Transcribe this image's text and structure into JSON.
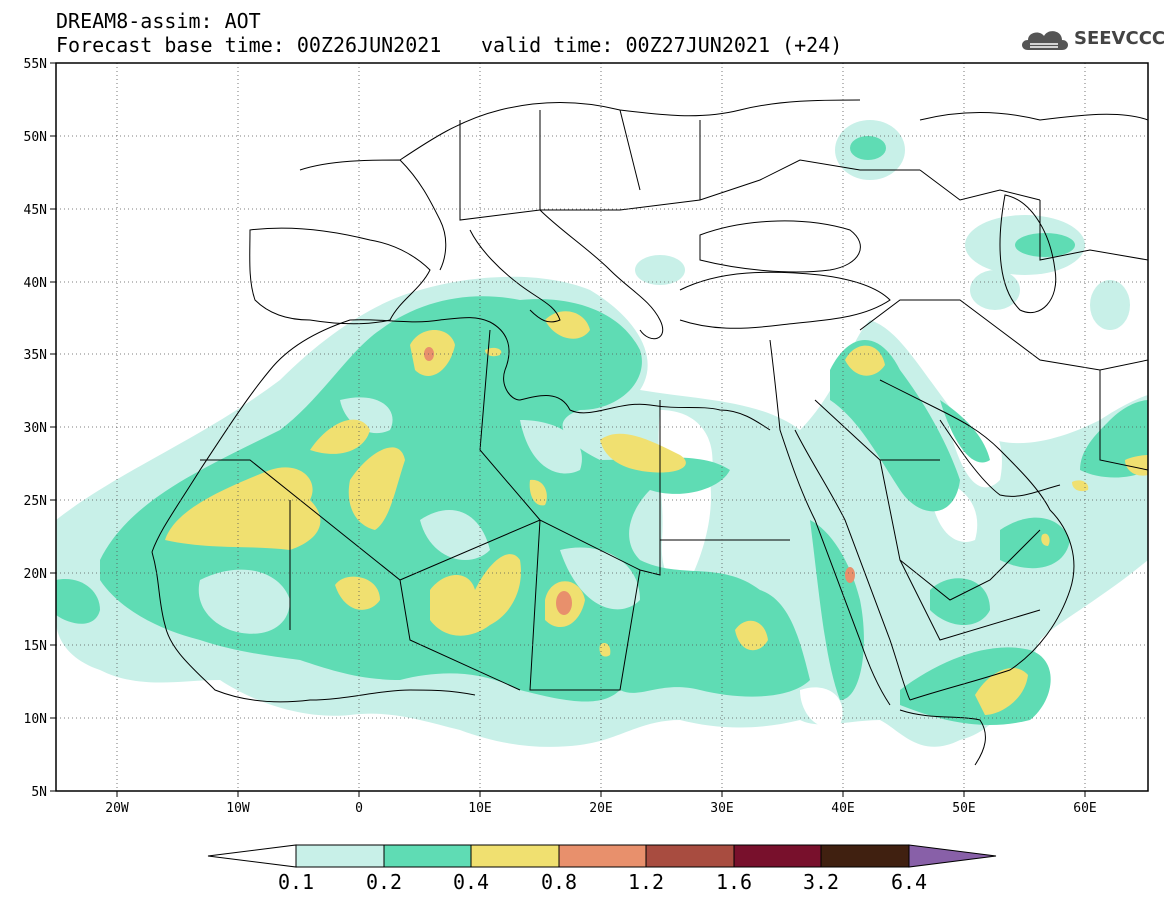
{
  "header": {
    "title_line1": "DREAM8-assim: AOT",
    "title_line2": "Forecast base time: 00Z26JUN2021",
    "valid_time": "valid time: 00Z27JUN2021 (+24)",
    "logo_text": "SEEVCCC"
  },
  "map": {
    "lat_labels": [
      "55N",
      "50N",
      "45N",
      "40N",
      "35N",
      "30N",
      "25N",
      "20N",
      "15N",
      "10N",
      "5N"
    ],
    "lon_labels": [
      "20W",
      "10W",
      "0",
      "10E",
      "20E",
      "30E",
      "40E",
      "50E",
      "60E"
    ],
    "region": {
      "lon_range": [
        -25,
        65
      ],
      "lat_range": [
        5,
        55
      ]
    }
  },
  "colorbar": {
    "labels": [
      "0.1",
      "0.2",
      "0.4",
      "0.8",
      "1.2",
      "1.6",
      "3.2",
      "6.4"
    ],
    "colors": [
      "#c8f0e8",
      "#5fdcb4",
      "#f0e070",
      "#e8906c",
      "#a84c40",
      "#78102c",
      "#402010",
      "#8860a8"
    ]
  },
  "colors": {
    "aot_0_1": "#c8f0e8",
    "aot_0_2": "#5fdcb4",
    "aot_0_4": "#f0e070",
    "aot_0_8": "#e8906c",
    "borders": "#000000"
  }
}
